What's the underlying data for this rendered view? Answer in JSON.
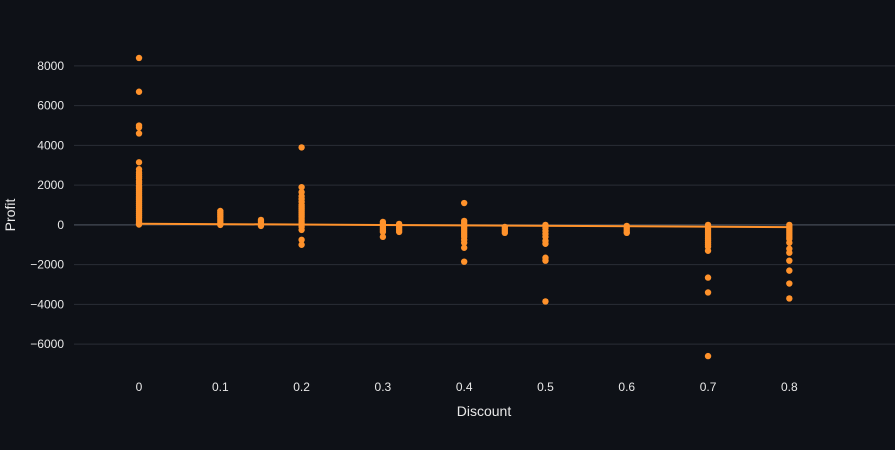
{
  "chart_data": {
    "type": "scatter",
    "xlabel": "Discount",
    "ylabel": "Profit",
    "x_ticks": [
      0,
      0.1,
      0.2,
      0.3,
      0.4,
      0.5,
      0.6,
      0.7,
      0.8
    ],
    "x_tick_labels": [
      "0",
      "0.1",
      "0.2",
      "0.3",
      "0.4",
      "0.5",
      "0.6",
      "0.7",
      "0.8"
    ],
    "y_ticks": [
      -6000,
      -4000,
      -2000,
      0,
      2000,
      4000,
      6000,
      8000
    ],
    "y_tick_labels": [
      "−6000",
      "−4000",
      "−2000",
      "0",
      "2000",
      "4000",
      "6000",
      "8000"
    ],
    "xlim": [
      -0.08,
      0.93
    ],
    "ylim": [
      -7300,
      8800
    ],
    "grid": true,
    "color": "#ff922b",
    "trendline": {
      "x": [
        0,
        0.8
      ],
      "y": [
        60,
        -110
      ]
    },
    "series": [
      {
        "points": [
          [
            0,
            8400
          ],
          [
            0,
            6700
          ],
          [
            0,
            5000
          ],
          [
            0,
            4900
          ],
          [
            0,
            4600
          ],
          [
            0,
            3150
          ],
          [
            0,
            2800
          ],
          [
            0,
            2650
          ],
          [
            0,
            2550
          ],
          [
            0,
            2450
          ],
          [
            0,
            2350
          ],
          [
            0,
            2200
          ],
          [
            0,
            2100
          ],
          [
            0,
            1950
          ],
          [
            0,
            1850
          ],
          [
            0,
            1750
          ],
          [
            0,
            1650
          ],
          [
            0,
            1550
          ],
          [
            0,
            1450
          ],
          [
            0,
            1350
          ],
          [
            0,
            1250
          ],
          [
            0,
            1150
          ],
          [
            0,
            1050
          ],
          [
            0,
            950
          ],
          [
            0,
            850
          ],
          [
            0,
            750
          ],
          [
            0,
            650
          ],
          [
            0,
            550
          ],
          [
            0,
            450
          ],
          [
            0,
            350
          ],
          [
            0,
            250
          ],
          [
            0,
            150
          ],
          [
            0,
            80
          ],
          [
            0,
            20
          ],
          [
            0.1,
            700
          ],
          [
            0.1,
            600
          ],
          [
            0.1,
            500
          ],
          [
            0.1,
            400
          ],
          [
            0.1,
            300
          ],
          [
            0.1,
            200
          ],
          [
            0.1,
            100
          ],
          [
            0.1,
            0
          ],
          [
            0.15,
            250
          ],
          [
            0.15,
            150
          ],
          [
            0.15,
            50
          ],
          [
            0.15,
            -50
          ],
          [
            0.2,
            3900
          ],
          [
            0.2,
            1900
          ],
          [
            0.2,
            1650
          ],
          [
            0.2,
            1450
          ],
          [
            0.2,
            1300
          ],
          [
            0.2,
            1150
          ],
          [
            0.2,
            1000
          ],
          [
            0.2,
            900
          ],
          [
            0.2,
            800
          ],
          [
            0.2,
            700
          ],
          [
            0.2,
            600
          ],
          [
            0.2,
            500
          ],
          [
            0.2,
            400
          ],
          [
            0.2,
            300
          ],
          [
            0.2,
            200
          ],
          [
            0.2,
            100
          ],
          [
            0.2,
            0
          ],
          [
            0.2,
            -100
          ],
          [
            0.2,
            -250
          ],
          [
            0.2,
            -750
          ],
          [
            0.2,
            -1000
          ],
          [
            0.3,
            150
          ],
          [
            0.3,
            50
          ],
          [
            0.3,
            -50
          ],
          [
            0.3,
            -150
          ],
          [
            0.3,
            -250
          ],
          [
            0.3,
            -350
          ],
          [
            0.3,
            -600
          ],
          [
            0.32,
            50
          ],
          [
            0.32,
            -50
          ],
          [
            0.32,
            -150
          ],
          [
            0.32,
            -250
          ],
          [
            0.32,
            -350
          ],
          [
            0.4,
            1100
          ],
          [
            0.4,
            200
          ],
          [
            0.4,
            100
          ],
          [
            0.4,
            0
          ],
          [
            0.4,
            -100
          ],
          [
            0.4,
            -200
          ],
          [
            0.4,
            -300
          ],
          [
            0.4,
            -400
          ],
          [
            0.4,
            -500
          ],
          [
            0.4,
            -600
          ],
          [
            0.4,
            -750
          ],
          [
            0.4,
            -900
          ],
          [
            0.4,
            -1150
          ],
          [
            0.4,
            -1850
          ],
          [
            0.45,
            -100
          ],
          [
            0.45,
            -200
          ],
          [
            0.45,
            -300
          ],
          [
            0.45,
            -400
          ],
          [
            0.5,
            0
          ],
          [
            0.5,
            -150
          ],
          [
            0.5,
            -300
          ],
          [
            0.5,
            -450
          ],
          [
            0.5,
            -600
          ],
          [
            0.5,
            -800
          ],
          [
            0.5,
            -950
          ],
          [
            0.5,
            -1650
          ],
          [
            0.5,
            -1800
          ],
          [
            0.5,
            -3850
          ],
          [
            0.6,
            -50
          ],
          [
            0.6,
            -150
          ],
          [
            0.6,
            -250
          ],
          [
            0.6,
            -350
          ],
          [
            0.6,
            -400
          ],
          [
            0.7,
            0
          ],
          [
            0.7,
            -100
          ],
          [
            0.7,
            -200
          ],
          [
            0.7,
            -300
          ],
          [
            0.7,
            -400
          ],
          [
            0.7,
            -500
          ],
          [
            0.7,
            -600
          ],
          [
            0.7,
            -700
          ],
          [
            0.7,
            -800
          ],
          [
            0.7,
            -900
          ],
          [
            0.7,
            -1000
          ],
          [
            0.7,
            -1100
          ],
          [
            0.7,
            -1300
          ],
          [
            0.7,
            -2650
          ],
          [
            0.7,
            -3400
          ],
          [
            0.7,
            -6600
          ],
          [
            0.8,
            0
          ],
          [
            0.8,
            -100
          ],
          [
            0.8,
            -200
          ],
          [
            0.8,
            -300
          ],
          [
            0.8,
            -400
          ],
          [
            0.8,
            -500
          ],
          [
            0.8,
            -600
          ],
          [
            0.8,
            -700
          ],
          [
            0.8,
            -900
          ],
          [
            0.8,
            -1200
          ],
          [
            0.8,
            -1400
          ],
          [
            0.8,
            -1800
          ],
          [
            0.8,
            -2300
          ],
          [
            0.8,
            -2950
          ],
          [
            0.8,
            -3700
          ]
        ]
      }
    ]
  }
}
